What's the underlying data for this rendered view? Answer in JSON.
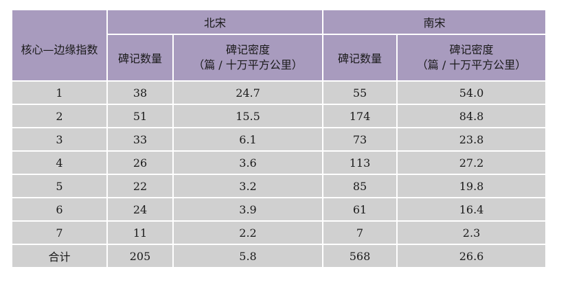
{
  "table": {
    "row_header_label": "核心—边缘指数",
    "groups": [
      "北宋",
      "南宋"
    ],
    "sub_headers": {
      "count": "碑记数量",
      "density_line1": "碑记密度",
      "density_line2": "（篇 / 十万平方公里）"
    },
    "rows": [
      {
        "index": "1",
        "bs_count": "38",
        "bs_density": "24.7",
        "ns_count": "55",
        "ns_density": "54.0"
      },
      {
        "index": "2",
        "bs_count": "51",
        "bs_density": "15.5",
        "ns_count": "174",
        "ns_density": "84.8"
      },
      {
        "index": "3",
        "bs_count": "33",
        "bs_density": "6.1",
        "ns_count": "73",
        "ns_density": "23.8"
      },
      {
        "index": "4",
        "bs_count": "26",
        "bs_density": "3.6",
        "ns_count": "113",
        "ns_density": "27.2"
      },
      {
        "index": "5",
        "bs_count": "22",
        "bs_density": "3.2",
        "ns_count": "85",
        "ns_density": "19.8"
      },
      {
        "index": "6",
        "bs_count": "24",
        "bs_density": "3.9",
        "ns_count": "61",
        "ns_density": "16.4"
      },
      {
        "index": "7",
        "bs_count": "11",
        "bs_density": "2.2",
        "ns_count": "7",
        "ns_density": "2.3"
      },
      {
        "index": "合计",
        "bs_count": "205",
        "bs_density": "5.8",
        "ns_count": "568",
        "ns_density": "26.6"
      }
    ]
  },
  "colors": {
    "header_bg": "#a89bbe",
    "body_bg": "#d0d0d0",
    "border": "#ffffff"
  }
}
